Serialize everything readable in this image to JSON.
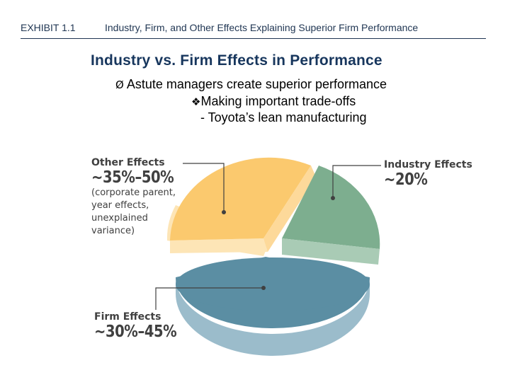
{
  "header": {
    "exhibit_label": "EXHIBIT 1.1",
    "exhibit_title": "Industry, Firm, and Other Effects Explaining Superior Firm Performance"
  },
  "slide": {
    "title": "Industry vs. Firm Effects in Performance",
    "bullets": [
      {
        "marker": "Ø",
        "text": "Astute managers create superior performance"
      },
      {
        "marker": "v",
        "text": "Making important trade-offs"
      },
      {
        "marker": "",
        "text": "- Toyota’s lean manufacturing"
      }
    ]
  },
  "chart_data": {
    "type": "pie",
    "slices": [
      {
        "name": "Industry Effects",
        "label": "~20%",
        "value": 20,
        "color": "#7dae8f"
      },
      {
        "name": "Firm Effects",
        "label": "~30%–45%",
        "value": 42,
        "color": "#5b8ea3"
      },
      {
        "name": "Other Effects",
        "label": "~35%–50%",
        "value": 38,
        "color": "#fbc96e"
      }
    ],
    "annotations": {
      "other_note": "(corporate parent,\nyear effects,\nunexplained\nvariance)"
    }
  }
}
